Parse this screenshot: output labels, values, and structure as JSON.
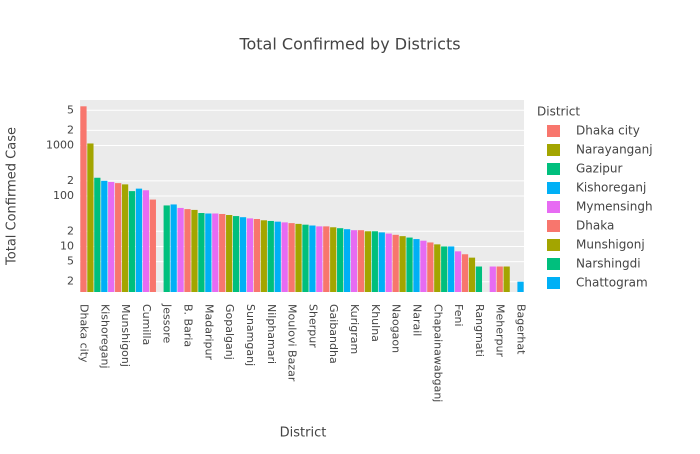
{
  "chart_data": {
    "type": "bar",
    "title": "Total Confirmed by Districts",
    "x_label": "District",
    "y_label": "Total Confirmed Case",
    "legend_title": "District",
    "log_y": true,
    "grid": true,
    "palette": [
      "#f8766d",
      "#a3a500",
      "#00bf7d",
      "#00b0f6",
      "#e76bf3"
    ],
    "categories": [
      "Dhaka city",
      "Narayanganj",
      "Gazipur",
      "Kishoreganj",
      "Mymensingh",
      "Dhaka",
      "Munshigonj",
      "Narshingdi",
      "Chattogram",
      "Cumilla",
      null,
      null,
      "Jessore",
      null,
      null,
      "B. Baria",
      null,
      null,
      "Madaripur",
      null,
      null,
      "Gopalganj",
      null,
      null,
      "Sunamganj",
      null,
      null,
      "Nilphamari",
      null,
      null,
      "Moulovi Bazar",
      null,
      null,
      "Sherpur",
      null,
      null,
      "Gaibandha",
      null,
      null,
      "Kurigram",
      null,
      null,
      "Khulna",
      null,
      null,
      "Naogaon",
      null,
      null,
      "Narail",
      null,
      null,
      "Chapainawabganj",
      null,
      null,
      "Feni",
      null,
      null,
      "Rangmati",
      null,
      null,
      "Meherpur",
      null,
      null,
      "Bagerhat"
    ],
    "values": [
      6000,
      1100,
      230,
      200,
      190,
      180,
      170,
      125,
      140,
      130,
      85,
      1,
      65,
      68,
      58,
      55,
      53,
      46,
      45,
      45,
      44,
      42,
      40,
      38,
      36,
      35,
      33,
      32,
      31,
      30,
      29,
      28,
      27,
      26,
      25,
      25,
      24,
      23,
      22,
      21,
      21,
      20,
      20,
      19,
      18,
      17,
      16,
      15,
      14,
      13,
      12,
      11,
      10,
      10,
      8,
      7,
      6,
      4,
      1,
      4,
      4,
      4,
      1,
      2
    ],
    "ylim": [
      1.25,
      8000
    ],
    "yticks": [
      {
        "value": 5000,
        "label": "5"
      },
      {
        "value": 2000,
        "label": "2"
      },
      1000,
      {
        "value": 200,
        "label": "2"
      },
      100,
      {
        "value": 20,
        "label": "2"
      },
      10,
      5,
      2
    ]
  }
}
